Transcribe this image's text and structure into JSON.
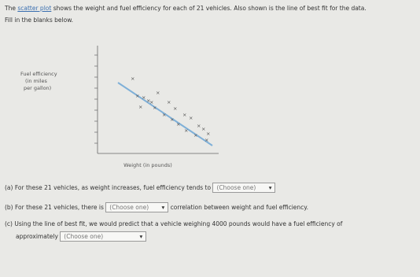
{
  "intro": {
    "before": "The",
    "link": "scatter plot",
    "after": "shows the weight and fuel efficiency for each of 21 vehicles. Also shown is the line of best fit for the data.",
    "instruction": "Fill in the blanks below."
  },
  "figure": {
    "y_label_1": "Fuel efficiency",
    "y_label_2": "(in miles",
    "y_label_3": "per gallon)",
    "x_label": "Weight (in pounds)"
  },
  "questions": [
    {
      "label": "(a)",
      "before": "For these 21 vehicles, as weight increases, fuel efficiency tends to",
      "select": "(Choose one)",
      "after": ""
    },
    {
      "label": "(b)",
      "before": "For these 21 vehicles, there is",
      "select": "(Choose one)",
      "after": "correlation between weight and fuel efficiency."
    },
    {
      "label": "(c)",
      "before": "Using the line of best fit, we would predict that a vehicle weighing 4000 pounds would have a fuel efficiency of",
      "before2": "approximately",
      "select": "(Choose one)",
      "after": ""
    }
  ]
}
